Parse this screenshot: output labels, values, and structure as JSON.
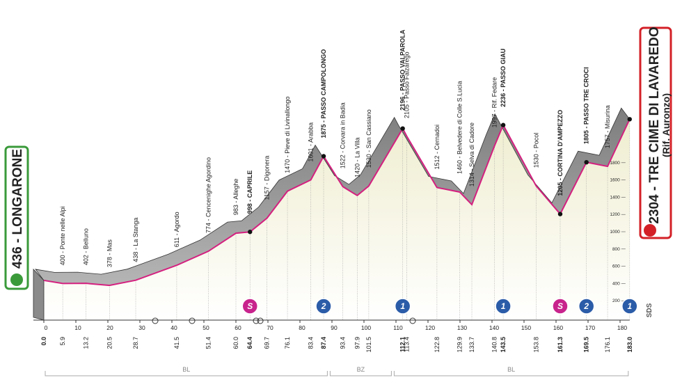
{
  "chart_data": {
    "type": "area",
    "x": [
      {
        "value": 0,
        "label": "0.0"
      },
      5.9,
      13.2,
      20.5,
      28.7,
      41.5,
      51.4,
      {
        "value": 60,
        "label": "60.0"
      },
      64.4,
      69.7,
      76.1,
      83.4,
      87.4,
      93.4,
      97.9,
      101.5,
      112.1,
      113.4,
      122.8,
      129.9,
      133.7,
      140.8,
      143.5,
      153.8,
      161.3,
      169.5,
      176.1,
      {
        "value": 183,
        "label": "183.0"
      }
    ],
    "values": [
      436,
      400,
      402,
      378,
      438,
      611,
      774,
      983,
      998,
      1157,
      1470,
      1601,
      1875,
      1522,
      1420,
      1530,
      2196,
      2105,
      1512,
      1460,
      1314,
      1997,
      2236,
      1530,
      1205,
      1805,
      1757,
      2304
    ],
    "value_labels": [
      "436 - LONGARONE",
      "400 - Ponte nelle Alpi",
      "402 - Belluno",
      "378 - Mas",
      "438 - La Stanga",
      "611 - Agordo",
      "774 - Cencenighe Agordino",
      "983 - Alleghe",
      "998 - CAPRILE",
      "1157 - Digonera",
      "1470 - Pieve di Livinallongo",
      "1601 - Arabba",
      "1875 - PASSO CAMPOLONGO",
      "1522 - Corvara in Badia",
      "1420 - La Villa",
      "1530 - San Cassiano",
      "2196 - PASSO VALPAROLA",
      "2105 - Passo Falzarego",
      "1512 - Cernadoi",
      "1460 - Belvedere di Colle S.Lucia",
      "1314 - Selva di Cadore",
      "1997 - Rif. Fedare",
      "2236 - PASSO GIAU",
      "1530 - Pocol",
      "1205 - CORTINA D'AMPEZZO",
      "1805 - PASSO TRE CROCI",
      "1757 - Misurina",
      "2304 - TRE CIME DI LAVAREDO"
    ],
    "highlight": [
      0,
      8,
      12,
      16,
      22,
      24,
      25,
      27
    ],
    "finish_note": "(Rif. Auronzo)",
    "color": "#d4207f",
    "xlim": [
      0,
      183
    ],
    "xticks": [
      0,
      10,
      20,
      30,
      40,
      50,
      60,
      70,
      80,
      90,
      100,
      110,
      120,
      130,
      140,
      150,
      160,
      170,
      180
    ],
    "ylim": [
      0,
      2000
    ],
    "yticks": [
      200,
      400,
      600,
      800,
      1000,
      1200,
      1400,
      1600,
      1800
    ],
    "markers": [
      {
        "x": 64.4,
        "label": "S",
        "color": "#c8238c"
      },
      {
        "x": 87.4,
        "label": "2",
        "color": "#2b5ca8"
      },
      {
        "x": 112.1,
        "label": "1",
        "color": "#2b5ca8"
      },
      {
        "x": 143.5,
        "label": "1",
        "color": "#2b5ca8"
      },
      {
        "x": 161.3,
        "label": "S",
        "color": "#c8238c"
      },
      {
        "x": 169.5,
        "label": "2",
        "color": "#2b5ca8"
      },
      {
        "x": 183,
        "label": "1",
        "color": "#2b5ca8"
      }
    ],
    "regions": [
      {
        "label": "BL",
        "from": 0,
        "to": 89
      },
      {
        "label": "BZ",
        "from": 89,
        "to": 109
      },
      {
        "label": "BL",
        "from": 109,
        "to": 183
      }
    ],
    "logo": "SDS"
  }
}
